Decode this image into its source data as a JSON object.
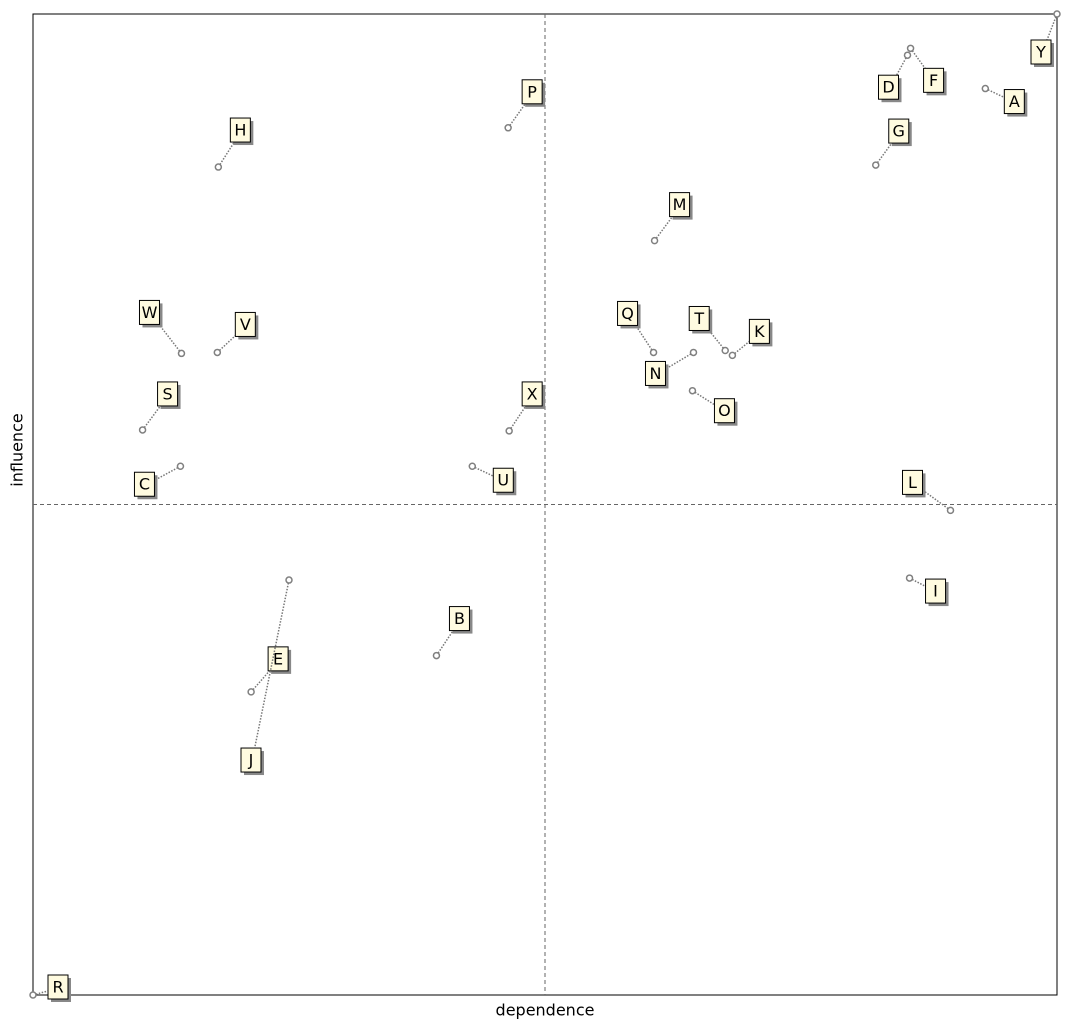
{
  "chart_data": {
    "type": "scatter",
    "xlabel": "dependence",
    "ylabel": "influence",
    "labels": [
      "Y",
      "D",
      "F",
      "A",
      "G",
      "P",
      "H",
      "M",
      "W",
      "V",
      "Q",
      "T",
      "K",
      "N",
      "O",
      "S",
      "X",
      "C",
      "U",
      "L",
      "I",
      "B",
      "E",
      "J",
      "R"
    ],
    "x": [
      100,
      85.4,
      85.7,
      93.0,
      82.3,
      46.4,
      18.1,
      60.7,
      14.5,
      18.0,
      60.6,
      67.6,
      68.3,
      64.5,
      64.4,
      10.7,
      46.5,
      14.4,
      42.9,
      89.6,
      85.6,
      39.4,
      21.3,
      25.0,
      0
    ],
    "values": [
      100,
      95.8,
      96.5,
      92.4,
      84.6,
      88.4,
      84.4,
      76.9,
      65.4,
      65.5,
      65.5,
      65.7,
      65.2,
      65.5,
      61.6,
      57.6,
      57.5,
      53.9,
      53.9,
      49.4,
      42.5,
      34.6,
      30.9,
      42.3,
      0
    ],
    "xlim": [
      0,
      100
    ],
    "ylim": [
      0,
      100
    ],
    "color": "#808080"
  }
}
